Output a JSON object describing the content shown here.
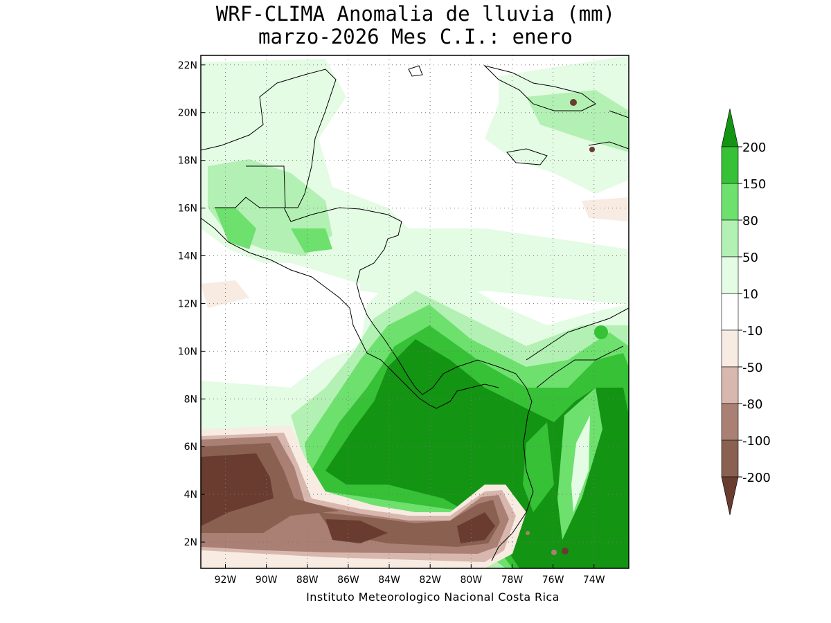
{
  "title": {
    "line1": "WRF-CLIMA Anomalia de lluvia (mm)",
    "line2": "marzo-2026 Mes C.I.: enero"
  },
  "credit": "Instituto Meteorologico Nacional Costa Rica",
  "map": {
    "lon_range": [
      -93.2,
      -72.3
    ],
    "lat_range": [
      0.9,
      22.4
    ],
    "x_ticks": [
      {
        "value": -92,
        "label": "92W"
      },
      {
        "value": -90,
        "label": "90W"
      },
      {
        "value": -88,
        "label": "88W"
      },
      {
        "value": -86,
        "label": "86W"
      },
      {
        "value": -84,
        "label": "84W"
      },
      {
        "value": -82,
        "label": "82W"
      },
      {
        "value": -80,
        "label": "80W"
      },
      {
        "value": -78,
        "label": "78W"
      },
      {
        "value": -76,
        "label": "76W"
      },
      {
        "value": -74,
        "label": "74W"
      }
    ],
    "y_ticks": [
      {
        "value": 2,
        "label": "2N"
      },
      {
        "value": 4,
        "label": "4N"
      },
      {
        "value": 6,
        "label": "6N"
      },
      {
        "value": 8,
        "label": "8N"
      },
      {
        "value": 10,
        "label": "10N"
      },
      {
        "value": 12,
        "label": "12N"
      },
      {
        "value": 14,
        "label": "14N"
      },
      {
        "value": 16,
        "label": "16N"
      },
      {
        "value": 18,
        "label": "18N"
      },
      {
        "value": 20,
        "label": "20N"
      },
      {
        "value": 22,
        "label": "22N"
      }
    ],
    "grid": "dotted"
  },
  "colorbar": {
    "levels": [
      {
        "label": "200"
      },
      {
        "label": "150"
      },
      {
        "label": "80"
      },
      {
        "label": "50"
      },
      {
        "label": "10"
      },
      {
        "label": "-10"
      },
      {
        "label": "-50"
      },
      {
        "label": "-80"
      },
      {
        "label": "-100"
      },
      {
        "label": "-200"
      }
    ],
    "colors_top_to_bottom": [
      "#139413",
      "#36c136",
      "#6ee06e",
      "#b3f0b3",
      "#e4fbe4",
      "#ffffff",
      "#f8ebe2",
      "#d8b8ae",
      "#aa8074",
      "#8a6050",
      "#6a3c30"
    ]
  }
}
